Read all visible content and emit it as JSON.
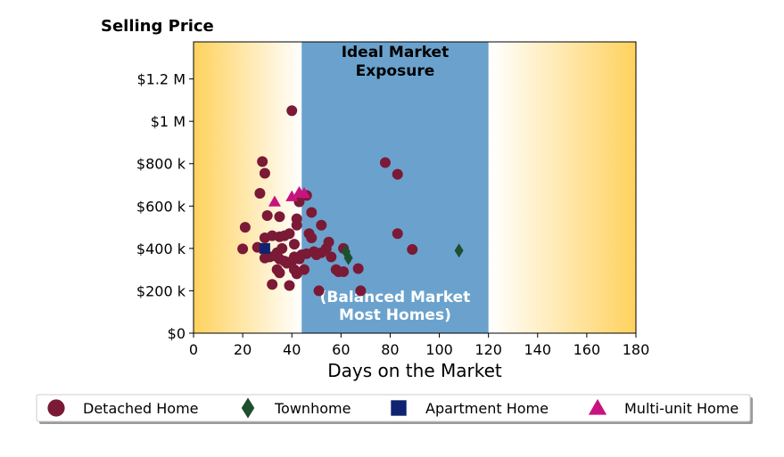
{
  "chart_data": {
    "type": "scatter",
    "title": "Selling Price",
    "xlabel": "Days on the Market",
    "ylabel": "",
    "xlim": [
      0,
      180
    ],
    "ylim": [
      0,
      1375000
    ],
    "x_ticks": [
      0,
      20,
      40,
      60,
      80,
      100,
      120,
      140,
      160,
      180
    ],
    "y_ticks": [
      0,
      200000,
      400000,
      600000,
      800000,
      1000000,
      1200000
    ],
    "y_tick_labels": [
      "$0",
      "$200 k",
      "$400 k",
      "$600 k",
      "$800 k",
      "$1 M",
      "$1.2 M"
    ],
    "grid": false,
    "regions": [
      {
        "name": "ideal-market-exposure",
        "x_start": 44,
        "x_end": 120,
        "color": "#6aa2cd",
        "label_top": [
          "Ideal Market",
          "Exposure"
        ],
        "label_bottom": [
          "(Balanced Market",
          "Most Homes)"
        ]
      }
    ],
    "background_gradient": {
      "edge_color": "#ffd25e",
      "center_color": "#ffffff"
    },
    "legend_position": "bottom",
    "series": [
      {
        "name": "Detached Home",
        "marker": "circle",
        "color": "#7a1a36",
        "points": [
          [
            40,
            1050000
          ],
          [
            28,
            810000
          ],
          [
            29,
            755000
          ],
          [
            27,
            660000
          ],
          [
            30,
            555000
          ],
          [
            35,
            550000
          ],
          [
            21,
            500000
          ],
          [
            20,
            398000
          ],
          [
            26,
            405000
          ],
          [
            29,
            450000
          ],
          [
            32,
            460000
          ],
          [
            35,
            455000
          ],
          [
            37,
            460000
          ],
          [
            39,
            470000
          ],
          [
            41,
            420000
          ],
          [
            43,
            620000
          ],
          [
            46,
            650000
          ],
          [
            48,
            570000
          ],
          [
            42,
            540000
          ],
          [
            42,
            510000
          ],
          [
            47,
            470000
          ],
          [
            48,
            450000
          ],
          [
            52,
            510000
          ],
          [
            55,
            430000
          ],
          [
            54,
            400000
          ],
          [
            29,
            355000
          ],
          [
            31,
            360000
          ],
          [
            33,
            365000
          ],
          [
            34,
            380000
          ],
          [
            36,
            400000
          ],
          [
            35,
            350000
          ],
          [
            37,
            340000
          ],
          [
            38,
            330000
          ],
          [
            40,
            340000
          ],
          [
            41,
            360000
          ],
          [
            43,
            350000
          ],
          [
            44,
            370000
          ],
          [
            46,
            375000
          ],
          [
            49,
            385000
          ],
          [
            50,
            370000
          ],
          [
            52,
            380000
          ],
          [
            56,
            360000
          ],
          [
            58,
            300000
          ],
          [
            59,
            290000
          ],
          [
            61,
            290000
          ],
          [
            34,
            300000
          ],
          [
            35,
            285000
          ],
          [
            41,
            300000
          ],
          [
            42,
            280000
          ],
          [
            45,
            300000
          ],
          [
            32,
            230000
          ],
          [
            39,
            225000
          ],
          [
            51,
            200000
          ],
          [
            68,
            200000
          ],
          [
            67,
            305000
          ],
          [
            61,
            400000
          ],
          [
            78,
            805000
          ],
          [
            83,
            750000
          ],
          [
            83,
            470000
          ],
          [
            89,
            395000
          ]
        ]
      },
      {
        "name": "Townhome",
        "marker": "diamond",
        "color": "#1e4f2e",
        "points": [
          [
            62,
            385000
          ],
          [
            63,
            355000
          ],
          [
            108,
            390000
          ]
        ]
      },
      {
        "name": "Apartment Home",
        "marker": "square",
        "color": "#0f2370",
        "points": [
          [
            29,
            400000
          ]
        ]
      },
      {
        "name": "Multi-unit Home",
        "marker": "triangle",
        "color": "#c8137f",
        "points": [
          [
            33,
            620000
          ],
          [
            40,
            645000
          ],
          [
            43,
            665000
          ],
          [
            45,
            660000
          ]
        ]
      }
    ]
  }
}
